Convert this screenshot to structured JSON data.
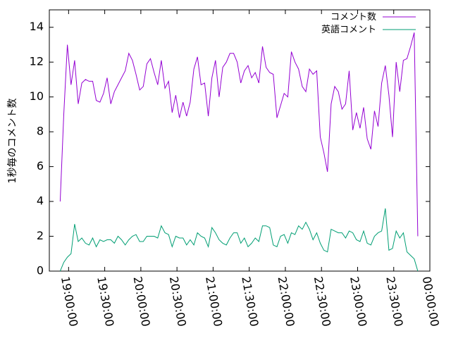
{
  "chart_data": {
    "type": "line",
    "title": "",
    "xlabel": "",
    "ylabel": "1秒毎のコメント数",
    "xlim": [
      "18:44:00",
      "00:00:00"
    ],
    "ylim": [
      0,
      15
    ],
    "x_ticks": [
      "19:00:00",
      "19:30:00",
      "20:00:00",
      "20:30:00",
      "21:00:00",
      "21:30:00",
      "22:00:00",
      "22:30:00",
      "23:00:00",
      "23:30:00",
      "00:00:00"
    ],
    "y_ticks": [
      0,
      2,
      4,
      6,
      8,
      10,
      12,
      14
    ],
    "legend_position": "top-right",
    "grid": false,
    "sample_interval_minutes": 3,
    "x_start": "18:53:00",
    "series": [
      {
        "name": "コメント数",
        "color": "#9400d3",
        "values": [
          4.0,
          9.0,
          13.0,
          10.7,
          12.1,
          9.6,
          10.8,
          11.0,
          10.9,
          10.9,
          9.8,
          9.7,
          10.2,
          11.1,
          9.6,
          10.3,
          10.7,
          11.1,
          11.5,
          12.5,
          12.1,
          11.3,
          10.4,
          10.6,
          11.9,
          12.2,
          11.4,
          10.7,
          12.1,
          10.5,
          10.9,
          9.1,
          10.1,
          8.8,
          9.7,
          8.9,
          9.7,
          11.6,
          12.3,
          10.7,
          10.8,
          8.9,
          11.1,
          12.1,
          10.0,
          11.7,
          12.0,
          12.5,
          12.5,
          12.0,
          10.8,
          11.5,
          11.8,
          11.1,
          11.4,
          10.8,
          12.9,
          11.7,
          11.4,
          11.3,
          8.8,
          9.5,
          10.2,
          10.0,
          12.6,
          12.0,
          11.6,
          10.6,
          10.3,
          11.6,
          11.3,
          11.5,
          7.7,
          6.8,
          5.7,
          9.6,
          10.6,
          10.3,
          9.3,
          9.6,
          11.5,
          8.1,
          9.1,
          8.2,
          9.4,
          7.6,
          7.0,
          9.2,
          8.3,
          10.8,
          11.8,
          10.1,
          7.7,
          12.0,
          10.3,
          12.1,
          12.2,
          12.9,
          13.7,
          2.0
        ]
      },
      {
        "name": "英語コメント",
        "color": "#009e73",
        "values": [
          0.0,
          0.5,
          0.8,
          1.0,
          2.7,
          1.7,
          1.9,
          1.6,
          1.5,
          1.9,
          1.4,
          1.8,
          1.7,
          1.8,
          1.8,
          1.6,
          2.0,
          1.8,
          1.5,
          1.8,
          2.0,
          2.1,
          1.7,
          1.7,
          2.0,
          2.0,
          2.0,
          1.9,
          2.6,
          2.2,
          2.1,
          1.4,
          2.0,
          1.9,
          1.9,
          1.5,
          1.8,
          1.5,
          2.2,
          2.0,
          1.9,
          1.4,
          2.5,
          2.2,
          1.8,
          1.6,
          1.5,
          1.9,
          2.2,
          2.2,
          1.6,
          1.9,
          1.4,
          1.6,
          1.9,
          1.7,
          2.6,
          2.6,
          2.5,
          1.5,
          1.4,
          2.0,
          2.1,
          1.6,
          2.2,
          2.1,
          2.6,
          2.4,
          2.8,
          2.4,
          1.8,
          2.2,
          1.6,
          1.2,
          1.1,
          2.4,
          2.3,
          2.2,
          2.2,
          1.9,
          2.3,
          2.2,
          1.8,
          1.7,
          2.3,
          1.6,
          1.5,
          2.0,
          2.2,
          2.3,
          3.6,
          1.2,
          1.3,
          2.3,
          1.9,
          2.2,
          1.1,
          0.9,
          0.7,
          0.0
        ]
      }
    ]
  }
}
